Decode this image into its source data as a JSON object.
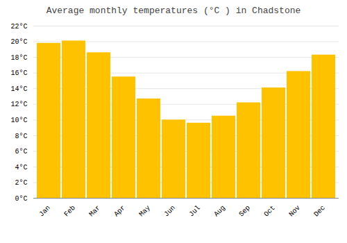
{
  "chart_data": {
    "type": "bar",
    "title": "Average monthly temperatures (°C ) in Chadstone",
    "categories": [
      "Jan",
      "Feb",
      "Mar",
      "Apr",
      "May",
      "Jun",
      "Jul",
      "Aug",
      "Sep",
      "Oct",
      "Nov",
      "Dec"
    ],
    "values": [
      19.8,
      20.1,
      18.6,
      15.5,
      12.7,
      10.0,
      9.6,
      10.5,
      12.2,
      14.1,
      16.2,
      18.3
    ],
    "color": "#FFC200",
    "ylim": [
      0,
      22
    ],
    "yticks": [
      {
        "value": 0,
        "label": "0°C"
      },
      {
        "value": 2,
        "label": "2°C"
      },
      {
        "value": 4,
        "label": "4°C"
      },
      {
        "value": 6,
        "label": "6°C"
      },
      {
        "value": 8,
        "label": "8°C"
      },
      {
        "value": 10,
        "label": "10°C"
      },
      {
        "value": 12,
        "label": "12°C"
      },
      {
        "value": 14,
        "label": "14°C"
      },
      {
        "value": 16,
        "label": "16°C"
      },
      {
        "value": 18,
        "label": "18°C"
      },
      {
        "value": 20,
        "label": "20°C"
      },
      {
        "value": 22,
        "label": "22°C"
      }
    ],
    "grid": true
  }
}
